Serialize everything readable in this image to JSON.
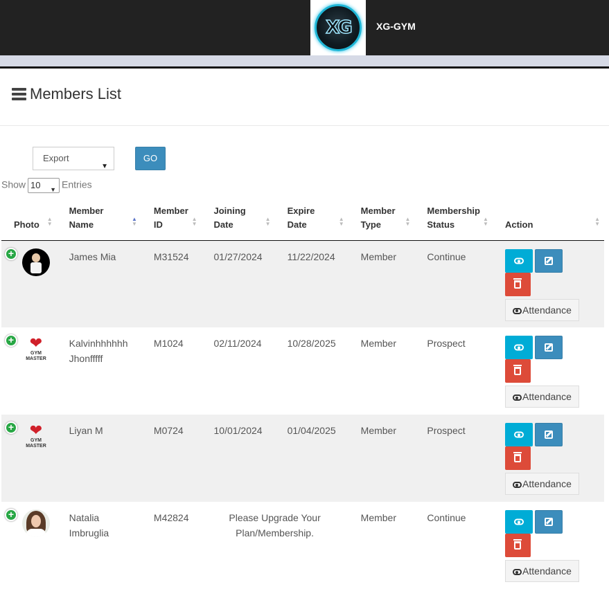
{
  "header": {
    "brand": "XG-GYM",
    "logo_text": "XG"
  },
  "page": {
    "title": "Members List"
  },
  "controls": {
    "export_label": "Export",
    "go_label": "GO",
    "show_label": "Show",
    "entries_value": "10",
    "entries_label": "Entries"
  },
  "table": {
    "columns": [
      "Photo",
      "Member Name",
      "Member ID",
      "Joining Date",
      "Expire Date",
      "Member Type",
      "Membership Status",
      "Action"
    ],
    "column_lines": {
      "member_id": [
        "Member",
        "ID"
      ],
      "joining_date": [
        "Joining",
        "Date"
      ],
      "member_type": [
        "Member",
        "Type"
      ],
      "membership_status": [
        "Membership",
        "Status"
      ]
    },
    "rows": [
      {
        "photo": "avatar-dark",
        "name": "James Mia",
        "id": "M31524",
        "joining": "01/27/2024",
        "expire": "11/22/2024",
        "type": "Member",
        "status": "Continue",
        "attendance": "Attendance"
      },
      {
        "photo": "gym-master-logo",
        "name": "Kalvinhhhhhh Jhonfffff",
        "id": "M1024",
        "joining": "02/11/2024",
        "expire": "10/28/2025",
        "type": "Member",
        "status": "Prospect",
        "attendance": "Attendance"
      },
      {
        "photo": "gym-master-logo",
        "name": "Liyan M",
        "id": "M0724",
        "joining": "10/01/2024",
        "expire": "01/04/2025",
        "type": "Member",
        "status": "Prospect",
        "attendance": "Attendance"
      },
      {
        "photo": "avatar-woman",
        "name": "Natalia Imbruglia",
        "id": "M42824",
        "upgrade_note": "Please Upgrade Your Plan/Membership.",
        "type": "Member",
        "status": "Continue",
        "attendance": "Attendance"
      }
    ],
    "gym_logo_text": "GYM MASTER"
  },
  "icons": {
    "view": "eye-icon",
    "edit": "edit-icon",
    "delete": "trash-icon",
    "expand": "plus-circle-icon",
    "menu": "hamburger-icon"
  },
  "colors": {
    "view": "#00acd6",
    "edit": "#3c8dbc",
    "delete": "#dd4b39",
    "expand": "#28a745",
    "topbar": "#222222"
  }
}
